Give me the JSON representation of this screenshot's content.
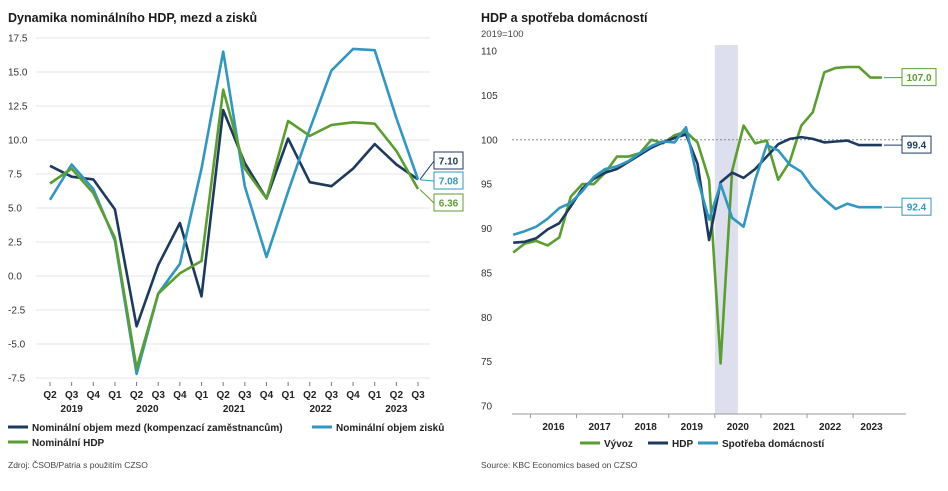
{
  "chart_data": [
    {
      "type": "line",
      "title": "Dynamika nominálního HDP, mezd a zisků",
      "xlabel": "",
      "ylabel": "",
      "ylim": [
        -7.5,
        17.5
      ],
      "yticks": [
        "17.5",
        "15.0",
        "12.5",
        "10.0",
        "7.5",
        "5.0",
        "2.5",
        "0.0",
        "-2.5",
        "-5.0",
        "-7.5"
      ],
      "categories": [
        "Q2",
        "Q3",
        "Q4",
        "Q1",
        "Q2",
        "Q3",
        "Q4",
        "Q1",
        "Q2",
        "Q3",
        "Q4",
        "Q1",
        "Q2",
        "Q3",
        "Q4",
        "Q1",
        "Q2",
        "Q3"
      ],
      "year_labels": [
        {
          "label": "2019",
          "category_index": 1
        },
        {
          "label": "2020",
          "category_index": 4.5
        },
        {
          "label": "2021",
          "category_index": 8.5
        },
        {
          "label": "2022",
          "category_index": 12.5
        },
        {
          "label": "2023",
          "category_index": 16
        }
      ],
      "grid": true,
      "legend_position": "bottom",
      "series": [
        {
          "name": "Nominální objem mezd (kompenzací zaměstnancům)",
          "color": "#1c3a5e",
          "values": [
            8.1,
            7.3,
            7.1,
            4.9,
            -3.7,
            0.8,
            3.9,
            -1.5,
            12.2,
            8.3,
            5.7,
            10.1,
            6.9,
            6.6,
            7.9,
            9.7,
            8.2,
            7.1
          ]
        },
        {
          "name": "Nominální objem zisků",
          "color": "#2f97c1",
          "values": [
            5.6,
            8.2,
            6.4,
            2.6,
            -7.2,
            -1.3,
            0.9,
            7.9,
            16.5,
            6.6,
            1.4,
            6.2,
            10.8,
            15.1,
            16.7,
            16.6,
            11.6,
            7.1
          ]
        },
        {
          "name": "Nominální HDP",
          "color": "#5a9e2f",
          "values": [
            6.8,
            7.9,
            6.1,
            2.8,
            -6.8,
            -1.3,
            0.2,
            1.1,
            13.7,
            7.9,
            5.7,
            11.4,
            10.3,
            11.1,
            11.3,
            11.2,
            9.2,
            6.4
          ]
        }
      ],
      "callouts": [
        {
          "label": "7.10",
          "color": "#1c3a5e",
          "value": 7.1
        },
        {
          "label": "7.08",
          "color": "#2f97c1",
          "value": 7.08
        },
        {
          "label": "6.36",
          "color": "#5a9e2f",
          "value": 6.36
        }
      ],
      "source": "Zdroj: ČSOB/Patria s použitím CZSO"
    },
    {
      "type": "line",
      "title": "HDP a spotřeba domácností",
      "subtitle": "2019=100",
      "xlabel": "",
      "ylabel": "",
      "ylim": [
        70,
        110
      ],
      "yticks": [
        "110",
        "105",
        "100",
        "95",
        "90",
        "85",
        "80",
        "75",
        "70"
      ],
      "xlim": [
        2015.6,
        2023.8
      ],
      "year_labels": [
        "2016",
        "2017",
        "2018",
        "2019",
        "2020",
        "2021",
        "2022",
        "2023"
      ],
      "year_positions": [
        2016.5,
        2017.5,
        2018.5,
        2019.5,
        2020.5,
        2021.5,
        2022.5,
        2023.4
      ],
      "shaded_range": [
        2020.0,
        2020.5
      ],
      "reference_line": 100,
      "grid": false,
      "legend_position": "bottom",
      "series": [
        {
          "name": "Vývoz",
          "color": "#5a9e2f",
          "x": [
            2015.625,
            2015.875,
            2016.125,
            2016.375,
            2016.625,
            2016.875,
            2017.125,
            2017.375,
            2017.625,
            2017.875,
            2018.125,
            2018.375,
            2018.625,
            2018.875,
            2019.125,
            2019.375,
            2019.625,
            2019.875,
            2020.125,
            2020.375,
            2020.625,
            2020.875,
            2021.125,
            2021.375,
            2021.625,
            2021.875,
            2022.125,
            2022.375,
            2022.625,
            2022.875,
            2023.125,
            2023.375,
            2023.625
          ],
          "values": [
            87.3,
            88.3,
            88.6,
            88.1,
            89.0,
            93.6,
            95.0,
            95.0,
            96.3,
            98.1,
            98.1,
            98.5,
            100.0,
            99.6,
            100.5,
            100.9,
            99.7,
            95.5,
            74.8,
            96.5,
            101.6,
            99.6,
            99.9,
            95.5,
            97.5,
            101.6,
            103.1,
            107.6,
            108.1,
            108.2,
            108.2,
            107.0,
            107.0
          ]
        },
        {
          "name": "HDP",
          "color": "#1c3a5e",
          "x": [
            2015.625,
            2015.875,
            2016.125,
            2016.375,
            2016.625,
            2016.875,
            2017.125,
            2017.375,
            2017.625,
            2017.875,
            2018.125,
            2018.375,
            2018.625,
            2018.875,
            2019.125,
            2019.375,
            2019.625,
            2019.875,
            2020.125,
            2020.375,
            2020.625,
            2020.875,
            2021.125,
            2021.375,
            2021.625,
            2021.875,
            2022.125,
            2022.375,
            2022.625,
            2022.875,
            2023.125,
            2023.375,
            2023.625
          ],
          "values": [
            88.4,
            88.5,
            88.9,
            89.9,
            90.6,
            92.5,
            94.5,
            95.6,
            96.3,
            96.7,
            97.5,
            98.3,
            99.1,
            99.7,
            100.2,
            100.6,
            97.3,
            88.7,
            95.2,
            96.3,
            95.7,
            96.7,
            98.1,
            99.5,
            100.1,
            100.3,
            100.1,
            99.7,
            99.8,
            99.9,
            99.4,
            99.4,
            99.4
          ]
        },
        {
          "name": "Spotřeba domácností",
          "color": "#2f97c1",
          "x": [
            2015.625,
            2015.875,
            2016.125,
            2016.375,
            2016.625,
            2016.875,
            2017.125,
            2017.375,
            2017.625,
            2017.875,
            2018.125,
            2018.375,
            2018.625,
            2018.875,
            2019.125,
            2019.375,
            2019.625,
            2019.875,
            2020.125,
            2020.375,
            2020.625,
            2020.875,
            2021.125,
            2021.375,
            2021.625,
            2021.875,
            2022.125,
            2022.375,
            2022.625,
            2022.875,
            2023.125,
            2023.375,
            2023.625
          ],
          "values": [
            89.3,
            89.7,
            90.2,
            91.1,
            92.3,
            92.9,
            94.2,
            95.8,
            96.7,
            97.0,
            97.6,
            98.5,
            99.3,
            99.8,
            99.7,
            101.4,
            95.6,
            91.0,
            95.0,
            91.2,
            90.2,
            95.5,
            99.4,
            98.8,
            97.2,
            96.4,
            94.6,
            93.3,
            92.2,
            92.8,
            92.4,
            92.4,
            92.4
          ]
        }
      ],
      "callouts": [
        {
          "label": "107.0",
          "color": "#5a9e2f",
          "value": 107.0
        },
        {
          "label": "99.4",
          "color": "#1c3a5e",
          "value": 99.4
        },
        {
          "label": "92.4",
          "color": "#2f97c1",
          "value": 92.4
        }
      ],
      "source": "Source: KBC Economics based on CZSO"
    }
  ]
}
